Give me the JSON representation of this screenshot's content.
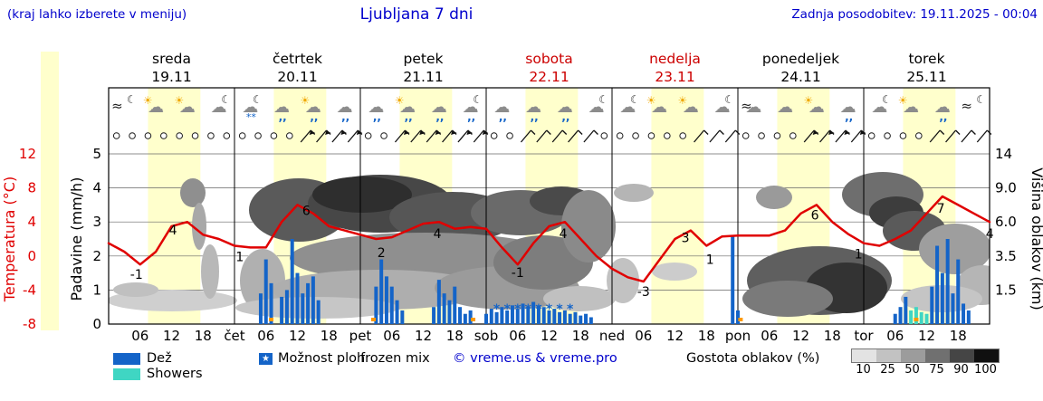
{
  "header": {
    "hint": "(kraj lahko izberete v meniju)",
    "title": "Ljubljana 7 dni",
    "updated": "Zadnja posodobitev: 19.11.2025 - 00:04"
  },
  "days": [
    {
      "name": "sreda",
      "date": "19.11",
      "short": "",
      "weekend": false
    },
    {
      "name": "četrtek",
      "date": "20.11",
      "short": "čet",
      "weekend": false
    },
    {
      "name": "petek",
      "date": "21.11",
      "short": "pet",
      "weekend": false
    },
    {
      "name": "sobota",
      "date": "22.11",
      "short": "sob",
      "weekend": true
    },
    {
      "name": "nedelja",
      "date": "23.11",
      "short": "ned",
      "weekend": true
    },
    {
      "name": "ponedeljek",
      "date": "24.11",
      "short": "pon",
      "weekend": false
    },
    {
      "name": "torek",
      "date": "25.11",
      "short": "tor",
      "weekend": false
    }
  ],
  "axes": {
    "temp_label": "Temperatura (°C)",
    "temp_ticks": [
      12,
      8,
      4,
      0,
      -4,
      -8
    ],
    "precip_label": "Padavine (mm/h)",
    "precip_ticks": [
      5,
      4,
      3,
      2,
      1,
      0
    ],
    "cloud_label": "Višina oblakov (km)",
    "cloud_ticks": [
      "14",
      "9.0",
      "6.0",
      "3.5",
      "1.5"
    ],
    "hour_ticks": [
      "06",
      "12",
      "18"
    ]
  },
  "legend": {
    "rain": "Dež",
    "showers": "Showers",
    "chance": "Možnost ploh",
    "chance_star": "★",
    "frozen": "frozen mix",
    "copyright": "© vreme.us & vreme.pro",
    "cloud_density": "Gostota oblakov (%)",
    "density_ticks": [
      10,
      25,
      50,
      75,
      90,
      100
    ],
    "density_colors": [
      "#e3e3e3",
      "#c2c2c2",
      "#9c9c9c",
      "#707070",
      "#454545",
      "#101010"
    ]
  },
  "colors": {
    "blue_text": "#0000cc",
    "temp_line": "#e00000",
    "rain": "#1464c8",
    "shower": "#3fd6c3",
    "daylight_band": "#ffffcc",
    "weekend": "#cc0000",
    "freezing_dot": "#ff9900"
  },
  "chart_data": {
    "type": "meteogram",
    "title": "Ljubljana 7 dni",
    "x_range_hours": [
      0,
      168
    ],
    "temp_axis_c": [
      12,
      8,
      4,
      0,
      -4,
      -8
    ],
    "precip_axis_mm_h": [
      5,
      4,
      3,
      2,
      1,
      0
    ],
    "cloud_height_axis_km": [
      "14",
      "9.0",
      "6.0",
      "3.5",
      "1.5"
    ],
    "temperature_c": {
      "step_hours": 3,
      "values": [
        1.5,
        0.5,
        -1,
        0.5,
        3.5,
        4,
        2.5,
        2,
        1.2,
        1,
        1,
        4,
        6,
        5,
        3.5,
        3,
        2.5,
        2,
        2.2,
        3,
        3.8,
        4,
        3.2,
        3.4,
        3.2,
        1,
        -1,
        1.5,
        3.5,
        4,
        2,
        0,
        -1.5,
        -2.5,
        -3,
        -0.5,
        2,
        3,
        1.2,
        2.3,
        2.4,
        2.4,
        2.4,
        3,
        5,
        6,
        4,
        2.6,
        1.5,
        1.2,
        2,
        3,
        5,
        7,
        6,
        5
      ],
      "end_value": 4,
      "labeled_points": [
        [
          6,
          -1,
          -4,
          16
        ],
        [
          14,
          4,
          -10,
          14
        ],
        [
          25,
          1,
          0,
          15
        ],
        [
          37,
          6,
          4,
          11
        ],
        [
          52,
          2,
          0,
          20
        ],
        [
          62,
          4,
          4,
          18
        ],
        [
          78,
          -1,
          0,
          14
        ],
        [
          86,
          4,
          4,
          18
        ],
        [
          102,
          -3,
          0,
          16
        ],
        [
          110,
          3,
          0,
          13
        ],
        [
          114,
          1,
          4,
          18
        ],
        [
          134,
          6,
          4,
          16
        ],
        [
          143,
          1,
          0,
          12
        ],
        [
          158,
          7,
          4,
          18
        ],
        [
          167,
          4,
          6,
          18
        ]
      ]
    },
    "precipitation_mm_h": {
      "bars": [
        [
          29,
          0.9
        ],
        [
          30,
          1.9
        ],
        [
          31,
          1.2
        ],
        [
          33,
          0.8
        ],
        [
          34,
          1.0
        ],
        [
          35,
          2.5
        ],
        [
          36,
          1.5
        ],
        [
          37,
          0.9
        ],
        [
          38,
          1.2
        ],
        [
          39,
          1.4
        ],
        [
          40,
          0.7
        ],
        [
          51,
          1.1
        ],
        [
          52,
          1.9
        ],
        [
          53,
          1.4
        ],
        [
          54,
          1.1
        ],
        [
          55,
          0.7
        ],
        [
          56,
          0.4
        ],
        [
          62,
          0.5
        ],
        [
          63,
          1.3
        ],
        [
          64,
          0.9
        ],
        [
          65,
          0.7
        ],
        [
          66,
          1.1
        ],
        [
          67,
          0.5
        ],
        [
          68,
          0.3
        ],
        [
          69,
          0.4
        ],
        [
          72,
          0.3
        ],
        [
          73,
          0.45
        ],
        [
          74,
          0.35
        ],
        [
          75,
          0.5
        ],
        [
          76,
          0.4
        ],
        [
          77,
          0.55
        ],
        [
          78,
          0.45
        ],
        [
          79,
          0.6
        ],
        [
          80,
          0.5
        ],
        [
          81,
          0.65
        ],
        [
          82,
          0.55
        ],
        [
          83,
          0.5
        ],
        [
          84,
          0.4
        ],
        [
          85,
          0.45
        ],
        [
          86,
          0.35
        ],
        [
          87,
          0.4
        ],
        [
          88,
          0.3
        ],
        [
          89,
          0.35
        ],
        [
          90,
          0.25
        ],
        [
          91,
          0.3
        ],
        [
          92,
          0.2
        ],
        [
          119,
          2.6
        ],
        [
          120,
          0.4
        ],
        [
          150,
          0.3
        ],
        [
          151,
          0.5
        ],
        [
          152,
          0.8
        ],
        [
          153,
          0.4,
          "s"
        ],
        [
          154,
          0.5,
          "s"
        ],
        [
          155,
          0.35,
          "s"
        ],
        [
          156,
          0.3,
          "s"
        ],
        [
          157,
          1.1
        ],
        [
          158,
          2.3
        ],
        [
          159,
          1.5
        ],
        [
          160,
          2.5
        ],
        [
          161,
          0.9
        ],
        [
          162,
          1.9
        ],
        [
          163,
          0.6
        ],
        [
          164,
          0.4
        ]
      ]
    },
    "wind_symbols": "ooooooooooooBBBBooBBBBBBoobbbbboooooobbbooooBBBBoooobbbb",
    "icons": [
      [
        "wind",
        "moon"
      ],
      [
        "sun",
        "cloud"
      ],
      [
        "sun",
        "cloud"
      ],
      [
        "moon",
        "cloud"
      ],
      [
        "moon",
        "cloud",
        "snow"
      ],
      [
        "cloud",
        "rain"
      ],
      [
        "sun",
        "cloud",
        "rain"
      ],
      [
        "cloud",
        "rain"
      ],
      [
        "cloud",
        "rain"
      ],
      [
        "sun",
        "cloud",
        "rain"
      ],
      [
        "cloud",
        "rain"
      ],
      [
        "moon",
        "cloud",
        "rain"
      ],
      [
        "cloud",
        "rain"
      ],
      [
        "cloud",
        "rain"
      ],
      [
        "cloud",
        "rain"
      ],
      [
        "moon",
        "cloud"
      ],
      [
        "moon",
        "cloud"
      ],
      [
        "sun",
        "cloud"
      ],
      [
        "sun",
        "cloud"
      ],
      [
        "moon",
        "cloud"
      ],
      [
        "wind",
        "cloud"
      ],
      [
        "cloud"
      ],
      [
        "sun",
        "cloud"
      ],
      [
        "cloud",
        "rain"
      ],
      [
        "moon",
        "cloud"
      ],
      [
        "sun",
        "cloud"
      ],
      [
        "cloud",
        "rain"
      ],
      [
        "wind",
        "moon"
      ]
    ],
    "markers": {
      "shower_chance_stars_h": [
        74,
        76,
        78,
        80,
        82,
        84,
        86,
        88
      ],
      "freezing_dots_h": [
        31,
        50.5,
        69.5,
        120.5,
        154
      ]
    },
    "daylight_band_hours": [
      7.5,
      17.5
    ]
  }
}
